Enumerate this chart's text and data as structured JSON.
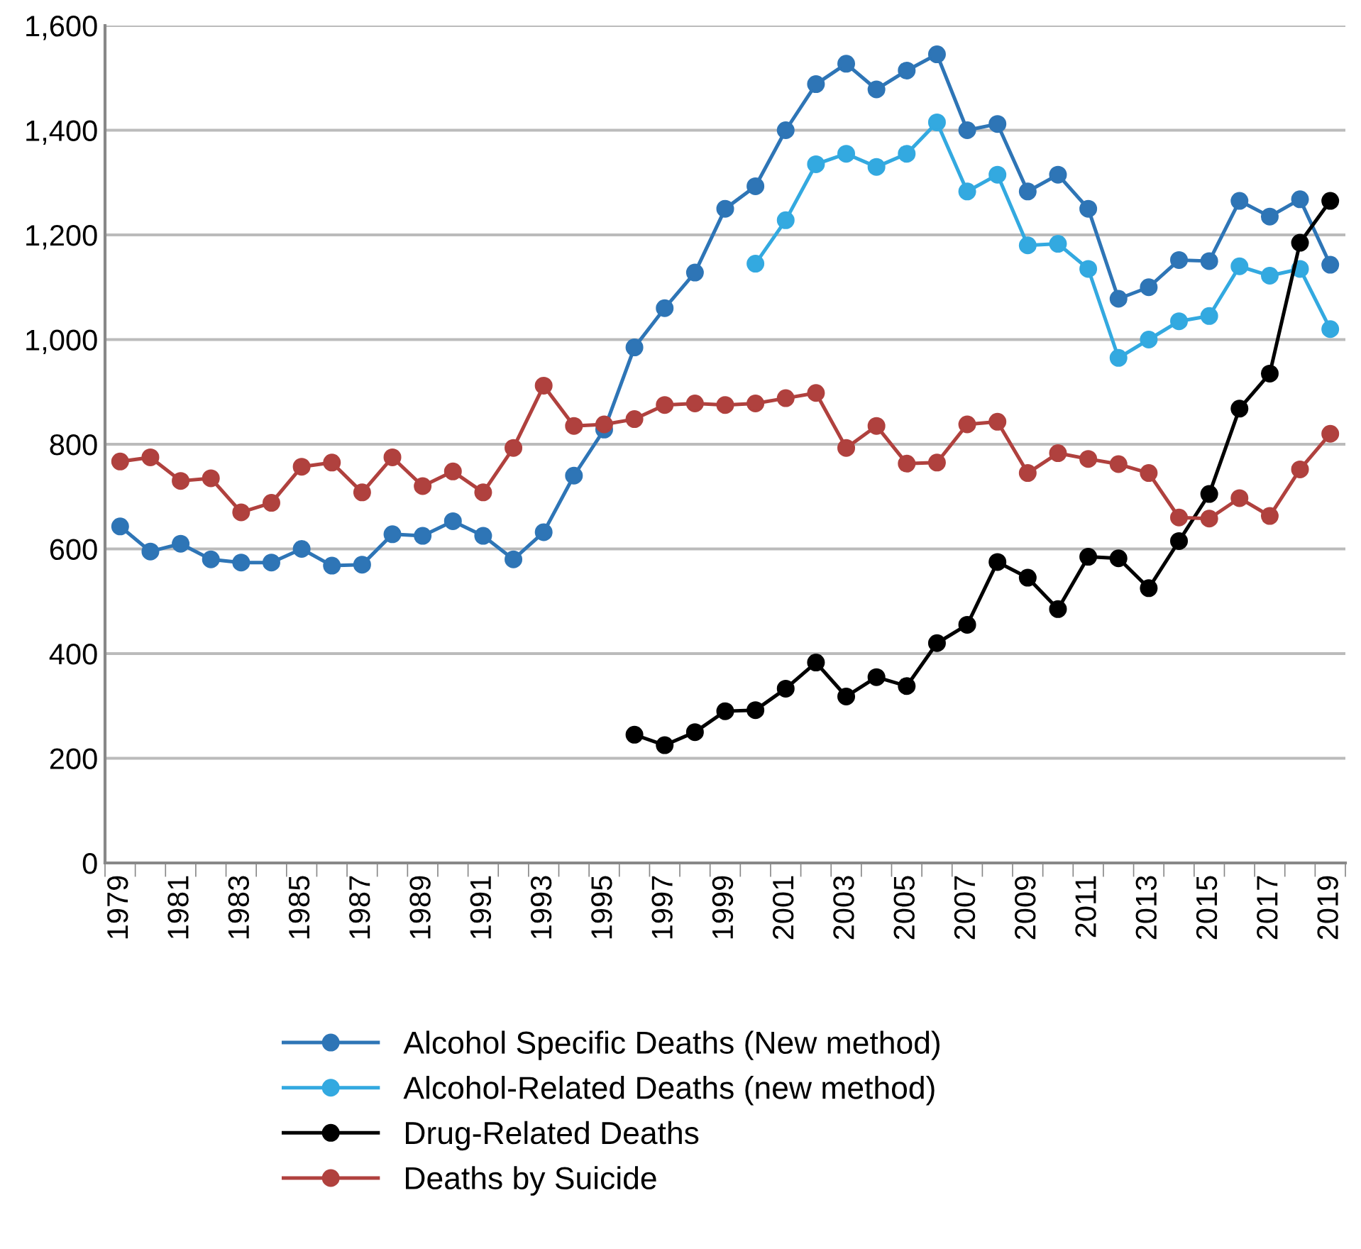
{
  "chart_data": {
    "type": "line",
    "categories": [
      "1979",
      null,
      "1981",
      null,
      "1983",
      null,
      "1985",
      null,
      "1987",
      null,
      "1989",
      null,
      "1991",
      null,
      "1993",
      null,
      "1995",
      null,
      "1997",
      null,
      "1999",
      null,
      "2001",
      null,
      "2003",
      null,
      "2005",
      null,
      "2007",
      null,
      "2009",
      null,
      "2011",
      null,
      "2013",
      null,
      "2015",
      null,
      "2017",
      null,
      "2019"
    ],
    "series": [
      {
        "name": "Alcohol Specific Deaths (New method)",
        "color": "#2e75b6",
        "values": [
          643,
          595,
          610,
          580,
          574,
          574,
          600,
          568,
          570,
          628,
          625,
          653,
          625,
          580,
          632,
          740,
          828,
          985,
          1060,
          1128,
          1250,
          1293,
          1400,
          1488,
          1527,
          1478,
          1514,
          1545,
          1400,
          1412,
          1283,
          1315,
          1250,
          1078,
          1100,
          1152,
          1150,
          1265,
          1235,
          1268,
          1143
        ]
      },
      {
        "name": "Alcohol-Related Deaths (new method)",
        "color": "#33a9e0",
        "values": [
          null,
          null,
          null,
          null,
          null,
          null,
          null,
          null,
          null,
          null,
          null,
          null,
          null,
          null,
          null,
          null,
          null,
          null,
          null,
          null,
          null,
          1145,
          1228,
          1335,
          1355,
          1330,
          1355,
          1415,
          1283,
          1315,
          1180,
          1183,
          1135,
          965,
          1000,
          1035,
          1045,
          1140,
          1122,
          1135,
          1020
        ]
      },
      {
        "name": "Drug-Related Deaths",
        "color": "#000000",
        "values": [
          null,
          null,
          null,
          null,
          null,
          null,
          null,
          null,
          null,
          null,
          null,
          null,
          null,
          null,
          null,
          null,
          null,
          245,
          225,
          250,
          290,
          292,
          333,
          383,
          318,
          355,
          338,
          420,
          455,
          575,
          545,
          485,
          585,
          582,
          525,
          615,
          705,
          868,
          935,
          1185,
          1265
        ]
      },
      {
        "name": "Deaths by Suicide",
        "color": "#b0413e",
        "values": [
          767,
          775,
          730,
          735,
          670,
          688,
          757,
          765,
          708,
          775,
          720,
          748,
          708,
          793,
          912,
          835,
          838,
          848,
          875,
          878,
          875,
          878,
          888,
          898,
          793,
          835,
          763,
          765,
          838,
          843,
          745,
          783,
          772,
          762,
          745,
          660,
          658,
          697,
          663,
          752,
          820
        ]
      }
    ],
    "ylim": [
      0,
      1600
    ],
    "yticks": [
      0,
      200,
      400,
      600,
      800,
      {
        "value": 1000,
        "label": "1,000"
      },
      {
        "value": 1200,
        "label": "1,200"
      },
      {
        "value": 1400,
        "label": "1,400"
      },
      {
        "value": 1600,
        "label": "1,600"
      }
    ],
    "grid": "y",
    "legend": "bottom",
    "marker": "circle",
    "line_style": "solid"
  }
}
